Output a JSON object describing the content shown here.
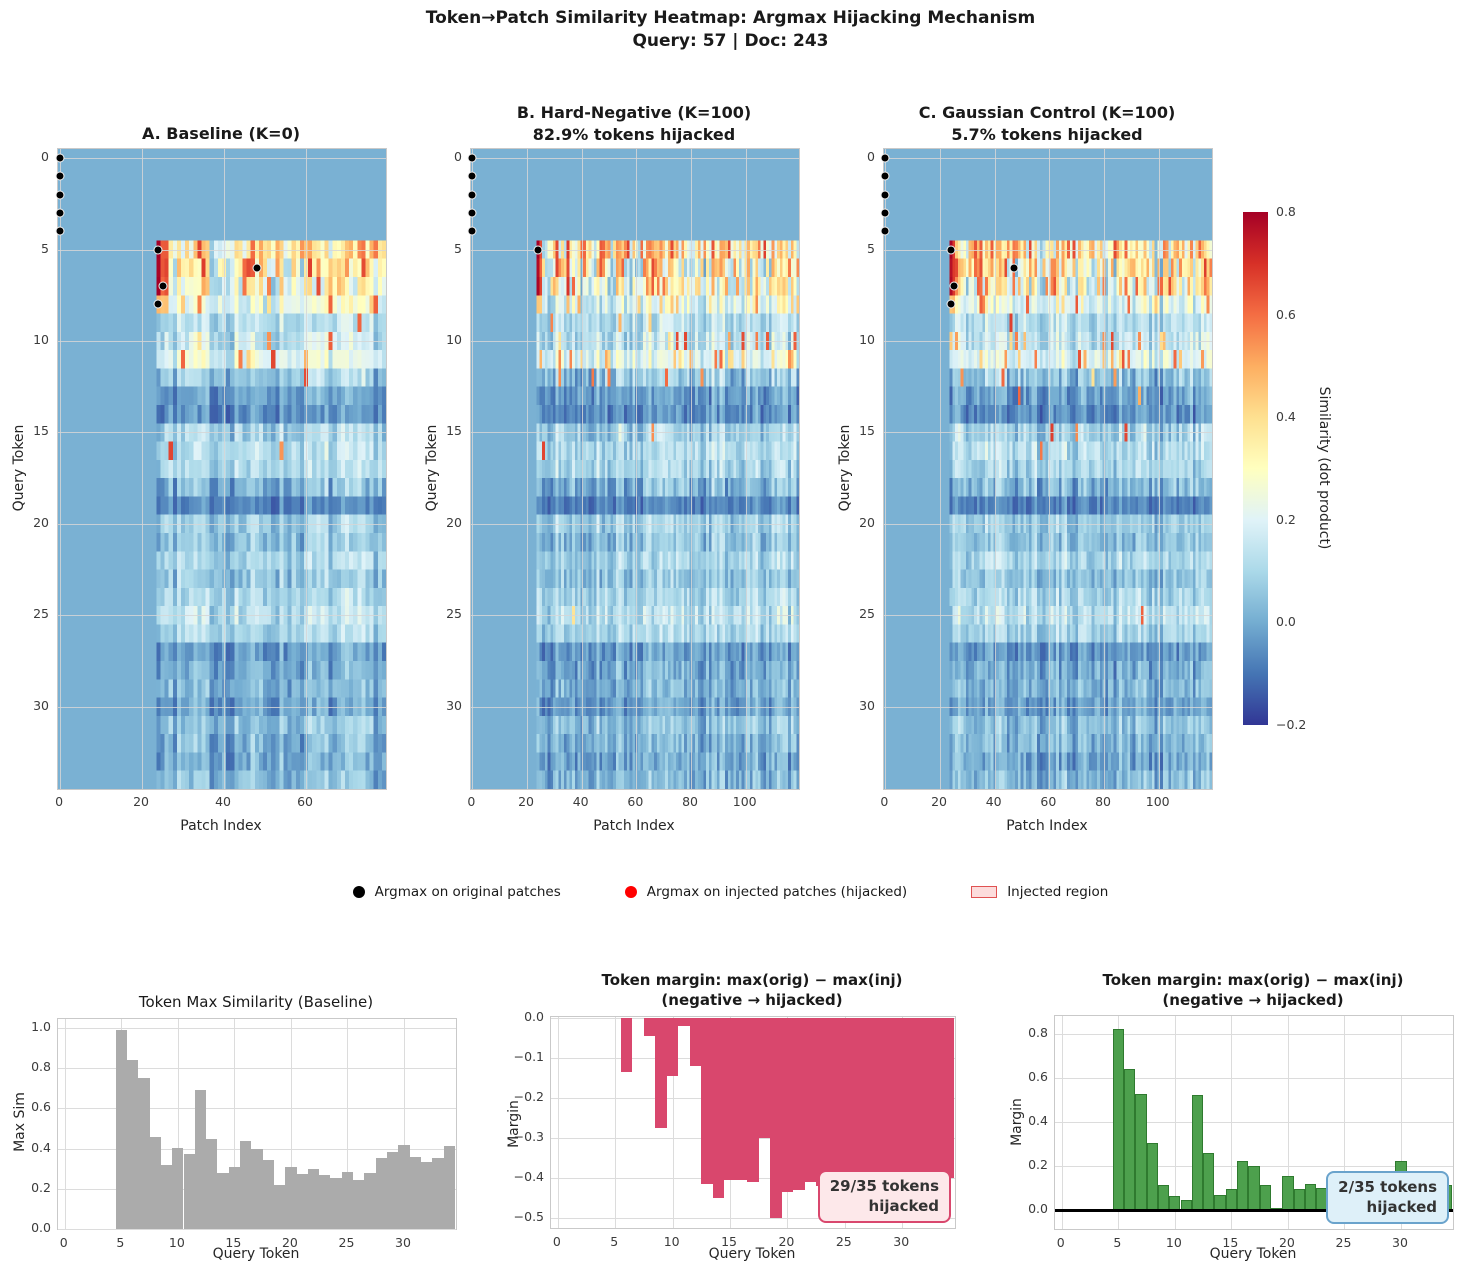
{
  "title": {
    "line1": "Token→Patch Similarity Heatmap: Argmax Hijacking Mechanism",
    "line2": "Query: 57 | Doc: 243"
  },
  "colormap": {
    "stops_low_to_high": [
      "#313695",
      "#4575b4",
      "#74add1",
      "#abd9e9",
      "#e0f3f8",
      "#ffffbf",
      "#fee090",
      "#fdae61",
      "#f46d43",
      "#d73027",
      "#a50026"
    ],
    "vmin": -0.2,
    "vmax": 0.8
  },
  "colorbar": {
    "label": "Similarity (dot product)",
    "tick_vals": [
      0.8,
      0.6,
      0.4,
      0.2,
      0.0,
      -0.2
    ],
    "tick_labels": [
      "0.8",
      "0.6",
      "0.4",
      "0.2",
      "0.0",
      "−0.2"
    ]
  },
  "legend": {
    "items": [
      {
        "marker": "dot",
        "color": "#000000",
        "border": "#000000",
        "label": "Argmax on original patches"
      },
      {
        "marker": "dot",
        "color": "#ff0000",
        "border": "#ff0000",
        "label": "Argmax on injected patches (hijacked)"
      },
      {
        "marker": "rect",
        "color": "#fcdcdc",
        "border": "#e05252",
        "label": "Injected region"
      }
    ]
  },
  "heatmap_row_profiles": [
    [
      0.04,
      0,
      0
    ],
    [
      0.04,
      0,
      0
    ],
    [
      0.04,
      0,
      0
    ],
    [
      0.04,
      0,
      0
    ],
    [
      0.04,
      0,
      0
    ],
    [
      0.3,
      0.22,
      0.3
    ],
    [
      0.26,
      0.24,
      0.25
    ],
    [
      0.24,
      0.22,
      0.22
    ],
    [
      0.2,
      0.14,
      0.12
    ],
    [
      0.12,
      0.1,
      0.03
    ],
    [
      0.14,
      0.12,
      0.08
    ],
    [
      0.2,
      0.1,
      0.12
    ],
    [
      0.06,
      0.13,
      0.04
    ],
    [
      -0.02,
      0.1,
      0.01
    ],
    [
      -0.05,
      0.09,
      0
    ],
    [
      0.09,
      0.12,
      0.01
    ],
    [
      0.12,
      0.1,
      0.01
    ],
    [
      0.1,
      0.1,
      0
    ],
    [
      0.03,
      0.12,
      0
    ],
    [
      -0.07,
      0.07,
      0
    ],
    [
      0.08,
      0.1,
      0
    ],
    [
      0.05,
      0.1,
      0
    ],
    [
      0.1,
      0.1,
      0
    ],
    [
      0.06,
      0.1,
      0
    ],
    [
      0.1,
      0.1,
      0
    ],
    [
      0.13,
      0.11,
      0.01
    ],
    [
      0.1,
      0.1,
      0
    ],
    [
      -0.03,
      0.09,
      0
    ],
    [
      0.0,
      0.1,
      0
    ],
    [
      0.02,
      0.1,
      0
    ],
    [
      -0.02,
      0.09,
      0
    ],
    [
      0.05,
      0.1,
      0
    ],
    [
      0.02,
      0.1,
      0
    ],
    [
      0.0,
      0.1,
      0
    ],
    [
      0.03,
      0.1,
      0
    ]
  ],
  "chart_data": [
    {
      "type": "heatmap",
      "title": "A. Baseline (K=0)",
      "subtitle": "",
      "xlabel": "Patch Index",
      "ylabel": "Query Token",
      "n_rows": 35,
      "n_cols": 80,
      "data_start_row": 5,
      "data_start_col": 24,
      "background_value": 0.01,
      "value_range": [
        -0.2,
        0.8
      ],
      "seed": 7,
      "x_ticks": [
        0,
        20,
        40,
        60
      ],
      "y_ticks": [
        0,
        5,
        10,
        15,
        20,
        25,
        30
      ],
      "hot_rects": [
        {
          "r0": 5,
          "r1": 7,
          "c0": 24,
          "c1": 24,
          "v": 0.78
        },
        {
          "r0": 5,
          "r1": 7,
          "c0": 25,
          "c1": 26,
          "v": 0.64
        },
        {
          "r0": 6,
          "r1": 6,
          "c0": 35,
          "c1": 35,
          "v": 0.68
        },
        {
          "r0": 5,
          "r1": 6,
          "c0": 47,
          "c1": 47,
          "v": 0.62
        },
        {
          "r0": 8,
          "r1": 8,
          "c0": 24,
          "c1": 26,
          "v": 0.45
        }
      ],
      "markers": [
        [
          0,
          0
        ],
        [
          1,
          0
        ],
        [
          2,
          0
        ],
        [
          3,
          0
        ],
        [
          4,
          0
        ],
        [
          5,
          24
        ],
        [
          6,
          48
        ],
        [
          7,
          25
        ],
        [
          8,
          24
        ]
      ]
    },
    {
      "type": "heatmap",
      "title": "B. Hard-Negative (K=100)",
      "subtitle": "82.9% tokens hijacked",
      "xlabel": "Patch Index",
      "ylabel": "Query Token",
      "n_rows": 35,
      "n_cols": 120,
      "data_start_row": 5,
      "data_start_col": 24,
      "background_value": 0.01,
      "value_range": [
        -0.2,
        0.8
      ],
      "seed": 13,
      "x_ticks": [
        0,
        20,
        40,
        60,
        80,
        100
      ],
      "y_ticks": [
        0,
        5,
        10,
        15,
        20,
        25,
        30
      ],
      "hot_rects": [
        {
          "r0": 5,
          "r1": 7,
          "c0": 24,
          "c1": 24,
          "v": 0.78
        },
        {
          "r0": 5,
          "r1": 7,
          "c0": 25,
          "c1": 25,
          "v": 0.64
        },
        {
          "r0": 5,
          "r1": 6,
          "c0": 31,
          "c1": 31,
          "v": 0.66
        },
        {
          "r0": 5,
          "r1": 7,
          "c0": 35,
          "c1": 35,
          "v": 0.68
        },
        {
          "r0": 5,
          "r1": 6,
          "c0": 47,
          "c1": 47,
          "v": 0.64
        },
        {
          "r0": 8,
          "r1": 8,
          "c0": 24,
          "c1": 25,
          "v": 0.42
        },
        {
          "r0": 12,
          "r1": 12,
          "c0": 84,
          "c1": 84,
          "v": 0.55
        }
      ],
      "markers": [
        [
          0,
          0
        ],
        [
          1,
          0
        ],
        [
          2,
          0
        ],
        [
          3,
          0
        ],
        [
          4,
          0
        ],
        [
          5,
          24
        ]
      ]
    },
    {
      "type": "heatmap",
      "title": "C. Gaussian Control (K=100)",
      "subtitle": "5.7% tokens hijacked",
      "xlabel": "Patch Index",
      "ylabel": "Query Token",
      "n_rows": 35,
      "n_cols": 120,
      "data_start_row": 5,
      "data_start_col": 24,
      "background_value": 0.01,
      "value_range": [
        -0.2,
        0.8
      ],
      "seed": 21,
      "x_ticks": [
        0,
        20,
        40,
        60,
        80,
        100
      ],
      "y_ticks": [
        0,
        5,
        10,
        15,
        20,
        25,
        30
      ],
      "hot_rects": [
        {
          "r0": 5,
          "r1": 7,
          "c0": 24,
          "c1": 24,
          "v": 0.78
        },
        {
          "r0": 5,
          "r1": 7,
          "c0": 25,
          "c1": 25,
          "v": 0.66
        },
        {
          "r0": 5,
          "r1": 6,
          "c0": 35,
          "c1": 35,
          "v": 0.64
        },
        {
          "r0": 5,
          "r1": 7,
          "c0": 47,
          "c1": 47,
          "v": 0.6
        },
        {
          "r0": 8,
          "r1": 8,
          "c0": 24,
          "c1": 25,
          "v": 0.45
        },
        {
          "r0": 12,
          "r1": 12,
          "c0": 84,
          "c1": 84,
          "v": 0.52
        }
      ],
      "markers": [
        [
          0,
          0
        ],
        [
          1,
          0
        ],
        [
          2,
          0
        ],
        [
          3,
          0
        ],
        [
          4,
          0
        ],
        [
          5,
          24
        ],
        [
          6,
          47
        ],
        [
          7,
          25
        ],
        [
          8,
          24
        ]
      ]
    },
    {
      "type": "bar",
      "title": "Token Max Similarity (Baseline)",
      "xlabel": "Query Token",
      "ylabel": "Max Sim",
      "bar_color": "#ababab",
      "bar_edge": "",
      "xlim": [
        -0.6,
        34.6
      ],
      "ylim": [
        0,
        1.045
      ],
      "x_ticks": [
        0,
        5,
        10,
        15,
        20,
        25,
        30
      ],
      "y_tick_vals": [
        1.0,
        0.8,
        0.6,
        0.4,
        0.2,
        0.0
      ],
      "y_tick_labels": [
        "1.0",
        "0.8",
        "0.6",
        "0.4",
        "0.2",
        "0.0"
      ],
      "zero_line": false,
      "values": [
        null,
        null,
        null,
        null,
        null,
        0.99,
        0.84,
        0.75,
        0.46,
        0.32,
        0.405,
        0.375,
        0.69,
        0.45,
        0.28,
        0.31,
        0.44,
        0.4,
        0.345,
        0.22,
        0.31,
        0.275,
        0.3,
        0.27,
        0.255,
        0.285,
        0.245,
        0.28,
        0.355,
        0.385,
        0.42,
        0.36,
        0.335,
        0.355,
        0.415
      ]
    },
    {
      "type": "bar",
      "title": "Token margin: max(orig) − max(inj)",
      "subtitle": "(negative → hijacked)",
      "xlabel": "Query Token",
      "ylabel": "Margin",
      "bar_color": "#d9476d",
      "bar_edge": "",
      "xlim": [
        -0.6,
        34.6
      ],
      "ylim": [
        -0.525,
        0.003
      ],
      "x_ticks": [
        0,
        5,
        10,
        15,
        20,
        25,
        30
      ],
      "y_tick_vals": [
        0.0,
        -0.1,
        -0.2,
        -0.3,
        -0.4,
        -0.5
      ],
      "y_tick_labels": [
        "0.0",
        "−0.1",
        "−0.2",
        "−0.3",
        "−0.4",
        "−0.5"
      ],
      "zero_line": false,
      "annotation": {
        "line1": "29/35 tokens",
        "line2": "hijacked",
        "bg": "#fde8ea",
        "border": "#d9476d"
      },
      "values": [
        null,
        null,
        null,
        null,
        null,
        0,
        -0.135,
        0,
        -0.045,
        -0.275,
        -0.145,
        -0.02,
        -0.12,
        -0.415,
        -0.45,
        -0.405,
        -0.405,
        -0.41,
        -0.3,
        -0.5,
        -0.435,
        -0.43,
        -0.41,
        -0.42,
        -0.44,
        -0.395,
        -0.4,
        -0.38,
        -0.4,
        -0.38,
        -0.395,
        -0.4,
        -0.41,
        -0.4,
        -0.4
      ]
    },
    {
      "type": "bar",
      "title": "Token margin: max(orig) − max(inj)",
      "subtitle": "(negative → hijacked)",
      "xlabel": "Query Token",
      "ylabel": "Margin",
      "bar_color": "#4da04d",
      "bar_edge": "#2f7a2f",
      "xlim": [
        -0.6,
        34.6
      ],
      "ylim": [
        -0.085,
        0.88
      ],
      "x_ticks": [
        0,
        5,
        10,
        15,
        20,
        25,
        30
      ],
      "y_tick_vals": [
        0.8,
        0.6,
        0.4,
        0.2,
        0.0
      ],
      "y_tick_labels": [
        "0.8",
        "0.6",
        "0.4",
        "0.2",
        "0.0"
      ],
      "zero_line": true,
      "annotation": {
        "line1": "2/35 tokens",
        "line2": "hijacked",
        "bg": "#def0f9",
        "border": "#6aa3cc"
      },
      "values": [
        null,
        null,
        null,
        null,
        null,
        0.82,
        0.64,
        0.525,
        0.305,
        0.115,
        0.065,
        0.045,
        0.52,
        0.26,
        0.07,
        0.095,
        0.225,
        0.2,
        0.115,
        0.01,
        0.155,
        0.095,
        0.12,
        0.1,
        0.02,
        0.055,
        0.07,
        -0.02,
        0.06,
        0.155,
        0.225,
        0.11,
        0.05,
        -0.03,
        0.115
      ]
    }
  ]
}
